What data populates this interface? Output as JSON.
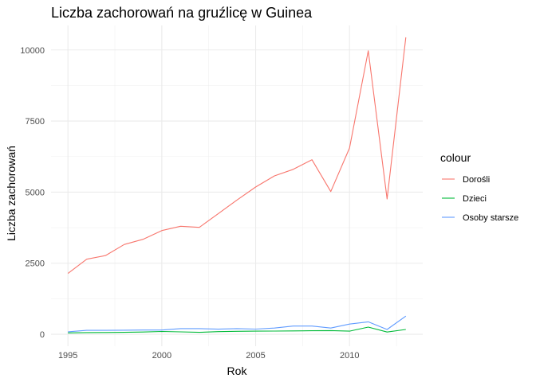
{
  "chart_data": {
    "type": "line",
    "title": "Liczba zachorowań na gruźlicę w Guinea",
    "xlabel": "Rok",
    "ylabel": "Liczba zachorowań",
    "xlim": [
      1995,
      2013
    ],
    "ylim": [
      0,
      10443
    ],
    "x_ticks": [
      1995,
      2000,
      2005,
      2010
    ],
    "y_ticks": [
      0,
      2500,
      5000,
      7500,
      10000
    ],
    "grid": true,
    "legend": {
      "title": "colour",
      "position": "right"
    },
    "x": [
      1995,
      1996,
      1997,
      1998,
      1999,
      2000,
      2001,
      2002,
      2003,
      2004,
      2005,
      2006,
      2007,
      2008,
      2009,
      2010,
      2011,
      2012,
      2013
    ],
    "series": [
      {
        "name": "Dorośli",
        "color": "#F8766D",
        "values": [
          2140,
          2640,
          2770,
          3160,
          3340,
          3650,
          3800,
          3760,
          4240,
          4720,
          5180,
          5570,
          5800,
          6140,
          5020,
          6550,
          9970,
          4760,
          10443
        ]
      },
      {
        "name": "Dzieci",
        "color": "#00BA38",
        "values": [
          50,
          60,
          65,
          70,
          80,
          100,
          85,
          70,
          95,
          105,
          110,
          115,
          120,
          125,
          130,
          110,
          255,
          80,
          170
        ]
      },
      {
        "name": "Osoby starsze",
        "color": "#619CFF",
        "values": [
          90,
          140,
          140,
          145,
          150,
          150,
          200,
          200,
          180,
          200,
          185,
          220,
          290,
          290,
          220,
          360,
          440,
          170,
          640
        ]
      }
    ]
  }
}
